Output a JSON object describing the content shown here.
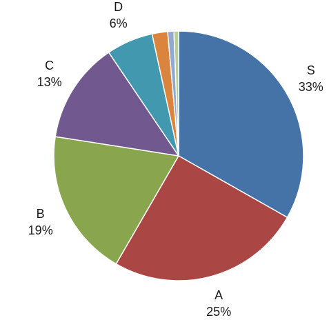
{
  "chart_data": {
    "type": "pie",
    "title": "",
    "slices": [
      {
        "label": "S",
        "value": 33,
        "value_label": "33%",
        "color": "#4572a7"
      },
      {
        "label": "A",
        "value": 25,
        "value_label": "25%",
        "color": "#aa4643"
      },
      {
        "label": "B",
        "value": 19,
        "value_label": "19%",
        "color": "#89a54e"
      },
      {
        "label": "C",
        "value": 13,
        "value_label": "13%",
        "color": "#71588f"
      },
      {
        "label": "D",
        "value": 6,
        "value_label": "6%",
        "color": "#4198af"
      },
      {
        "label": "",
        "value": 2,
        "value_label": "",
        "color": "#db843d"
      },
      {
        "label": "",
        "value": 0.8,
        "value_label": "",
        "color": "#93a9cf"
      },
      {
        "label": "",
        "value": 0.6,
        "value_label": "",
        "color": "#b9cd96"
      }
    ],
    "start_angle_deg": 0,
    "direction": "clockwise",
    "legend": "none"
  }
}
